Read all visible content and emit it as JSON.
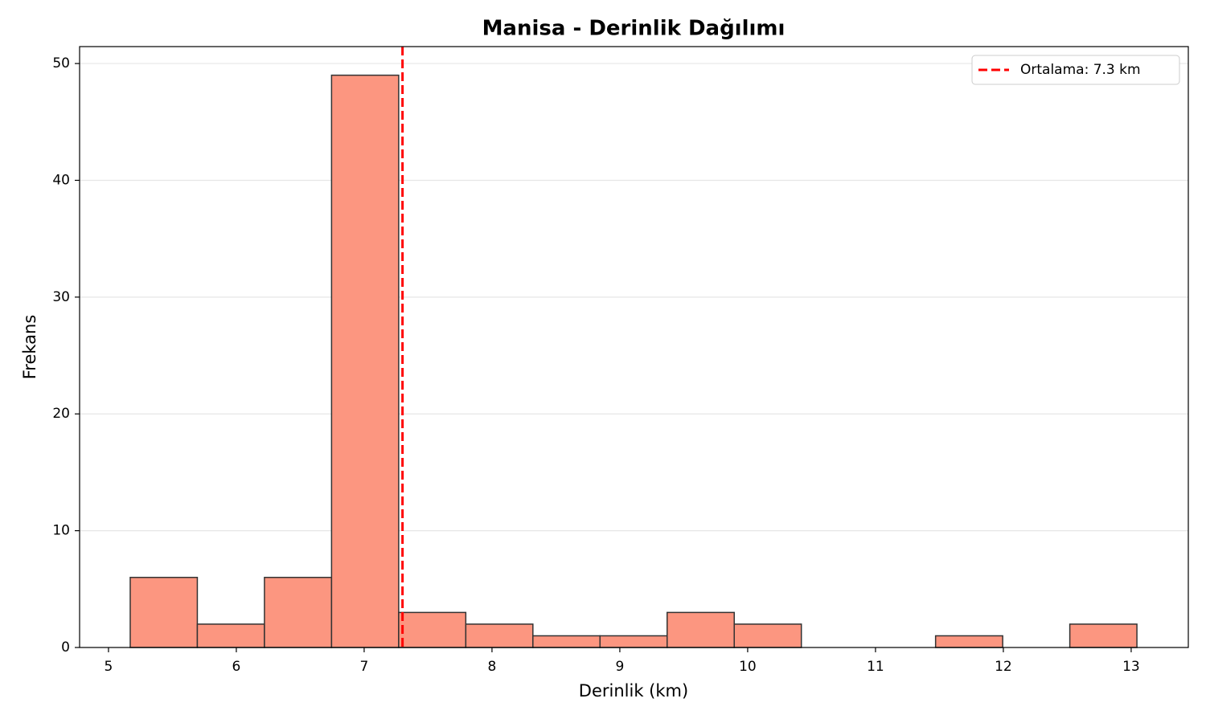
{
  "chart_data": {
    "type": "histogram",
    "title": "Manisa - Derinlik Dağılımı",
    "xlabel": "Derinlik (km)",
    "ylabel": "Frekans",
    "bins": [
      5.17,
      5.695,
      6.22,
      6.745,
      7.27,
      7.795,
      8.32,
      8.845,
      9.37,
      9.895,
      10.42,
      10.945,
      11.47,
      11.995,
      12.52,
      13.045
    ],
    "counts": [
      6,
      2,
      6,
      49,
      3,
      2,
      1,
      1,
      3,
      2,
      0,
      0,
      1,
      0,
      2
    ],
    "color": "#fc9680",
    "edgecolor": "#333333",
    "xlim": [
      4.774,
      13.447
    ],
    "ylim": [
      0,
      51.45
    ],
    "xticks": [
      5,
      6,
      7,
      8,
      9,
      10,
      11,
      12,
      13
    ],
    "yticks": [
      0,
      10,
      20,
      30,
      40,
      50
    ],
    "grid": true,
    "legend": "upper right",
    "mean_line": {
      "value": 7.3,
      "label": "Ortalama: 7.3 km",
      "color": "#ff0000"
    }
  }
}
